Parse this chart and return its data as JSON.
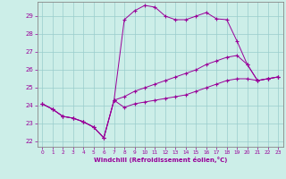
{
  "xlabel": "Windchill (Refroidissement éolien,°C)",
  "xlim": [
    -0.5,
    23.5
  ],
  "ylim": [
    21.7,
    29.8
  ],
  "xticks": [
    0,
    1,
    2,
    3,
    4,
    5,
    6,
    7,
    8,
    9,
    10,
    11,
    12,
    13,
    14,
    15,
    16,
    17,
    18,
    19,
    20,
    21,
    22,
    23
  ],
  "yticks": [
    22,
    23,
    24,
    25,
    26,
    27,
    28,
    29
  ],
  "background_color": "#cceee8",
  "line_color": "#990099",
  "grid_color": "#99cccc",
  "hours": [
    0,
    1,
    2,
    3,
    4,
    5,
    6,
    7,
    8,
    9,
    10,
    11,
    12,
    13,
    14,
    15,
    16,
    17,
    18,
    19,
    20,
    21,
    22,
    23
  ],
  "line1": [
    24.1,
    23.8,
    23.4,
    23.3,
    23.1,
    22.8,
    22.2,
    24.3,
    28.8,
    29.3,
    29.6,
    29.5,
    29.0,
    28.8,
    28.8,
    29.0,
    29.2,
    28.85,
    28.8,
    27.6,
    26.3,
    25.4,
    25.5,
    25.6
  ],
  "line2": [
    24.1,
    23.8,
    23.4,
    23.3,
    23.1,
    22.8,
    22.2,
    24.3,
    23.9,
    24.1,
    24.2,
    24.3,
    24.4,
    24.5,
    24.6,
    24.8,
    25.0,
    25.2,
    25.4,
    25.5,
    25.5,
    25.4,
    25.5,
    25.6
  ],
  "line3": [
    24.1,
    23.8,
    23.4,
    23.3,
    23.1,
    22.8,
    22.2,
    24.3,
    24.5,
    24.8,
    25.0,
    25.2,
    25.4,
    25.6,
    25.8,
    26.0,
    26.3,
    26.5,
    26.7,
    26.8,
    26.3,
    25.4,
    25.5,
    25.6
  ]
}
